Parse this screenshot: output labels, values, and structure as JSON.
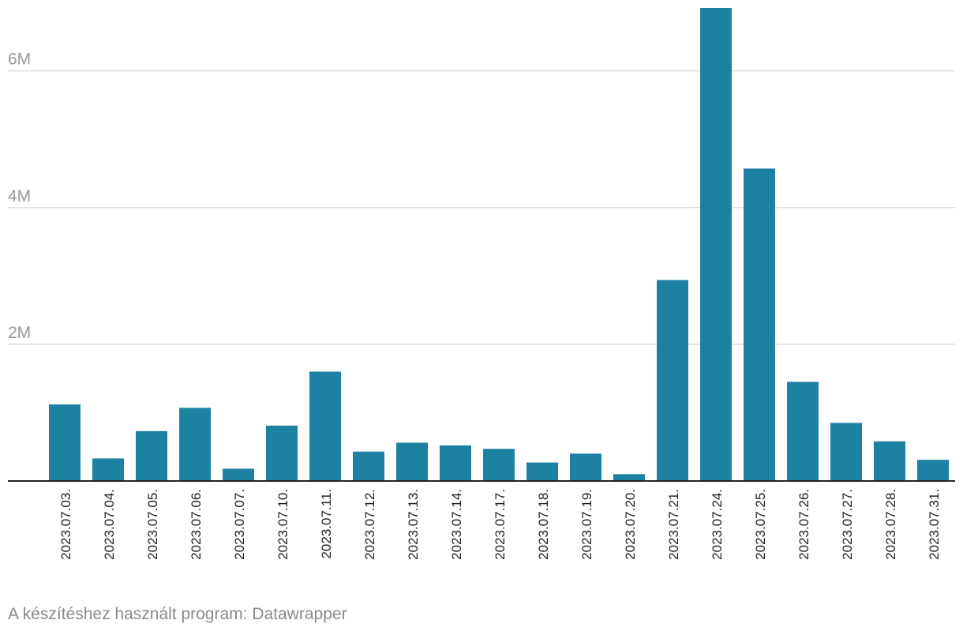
{
  "chart_data": {
    "type": "bar",
    "categories": [
      "2023.07.03.",
      "2023.07.04.",
      "2023.07.05.",
      "2023.07.06.",
      "2023.07.07.",
      "2023.07.10.",
      "2023.07.11.",
      "2023.07.12.",
      "2023.07.13.",
      "2023.07.14.",
      "2023.07.17.",
      "2023.07.18.",
      "2023.07.19.",
      "2023.07.20.",
      "2023.07.21.",
      "2023.07.24.",
      "2023.07.25.",
      "2023.07.26.",
      "2023.07.27.",
      "2023.07.28.",
      "2023.07.31."
    ],
    "values": [
      1120000,
      330000,
      730000,
      1070000,
      180000,
      810000,
      1600000,
      430000,
      560000,
      520000,
      470000,
      270000,
      400000,
      100000,
      2940000,
      6920000,
      4570000,
      1450000,
      850000,
      580000,
      310000
    ],
    "ylim": [
      0,
      6920000
    ],
    "yticks": [
      {
        "value": 2000000,
        "label": "2M"
      },
      {
        "value": 4000000,
        "label": "4M"
      },
      {
        "value": 6000000,
        "label": "6M"
      }
    ],
    "grid": true,
    "bar_color": "#1d81a2"
  },
  "footer": {
    "credit": "A készítéshez használt program: Datawrapper"
  }
}
